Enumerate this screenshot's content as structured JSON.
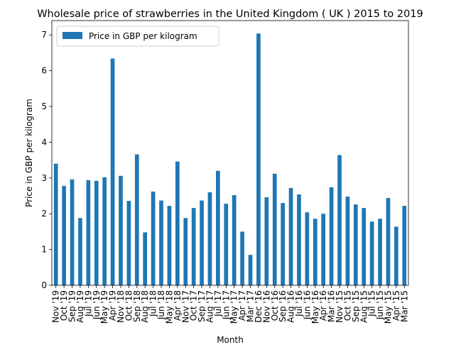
{
  "chart_data": {
    "type": "bar",
    "title": "Wholesale price of strawberries in the United Kingdom ( UK ) 2015 to 2019",
    "xlabel": "Month",
    "ylabel": "Price in GBP per kilogram",
    "ylim": [
      0,
      7.4
    ],
    "yticks": [
      0,
      1,
      2,
      3,
      4,
      5,
      6,
      7
    ],
    "legend": {
      "position": "top-left",
      "label": "Price in GBP per kilogram"
    },
    "grid": false,
    "colors": {
      "bar": "#1f77b4"
    },
    "categories": [
      "Nov '19",
      "Oct '19",
      "Sep '19",
      "Aug '19",
      "Jul '19",
      "Jun '19",
      "May '19",
      "Apr '19",
      "Nov '18",
      "Oct '18",
      "Sep '18",
      "Aug '18",
      "Jul '18",
      "Jun '18",
      "May '18",
      "Apr '18",
      "Nov '17",
      "Oct '17",
      "Sep '17",
      "Aug '17",
      "Jul '17",
      "Jun '17",
      "May '17",
      "Apr '17",
      "Mar '17",
      "Dec '16",
      "Nov '16",
      "Oct '16",
      "Sep '16",
      "Aug '16",
      "Jul '16",
      "Jun '16",
      "May '16",
      "Apr '16",
      "Mar '16",
      "Nov '15",
      "Oct '15",
      "Sep '15",
      "Aug '15",
      "Jul '15",
      "Jun '15",
      "May '15",
      "Apr '15",
      "Mar '15"
    ],
    "series": [
      {
        "name": "Price in GBP per kilogram",
        "values": [
          3.4,
          2.78,
          2.96,
          1.88,
          2.94,
          2.92,
          3.02,
          6.34,
          3.06,
          2.36,
          3.66,
          1.48,
          2.62,
          2.37,
          2.22,
          3.46,
          1.88,
          2.16,
          2.37,
          2.6,
          3.2,
          2.28,
          2.52,
          1.5,
          0.85,
          7.04,
          2.46,
          3.12,
          2.3,
          2.72,
          2.54,
          2.04,
          1.86,
          2.0,
          2.74,
          3.64,
          2.48,
          2.26,
          2.16,
          1.78,
          1.86,
          2.44,
          1.64,
          2.22
        ]
      }
    ]
  }
}
